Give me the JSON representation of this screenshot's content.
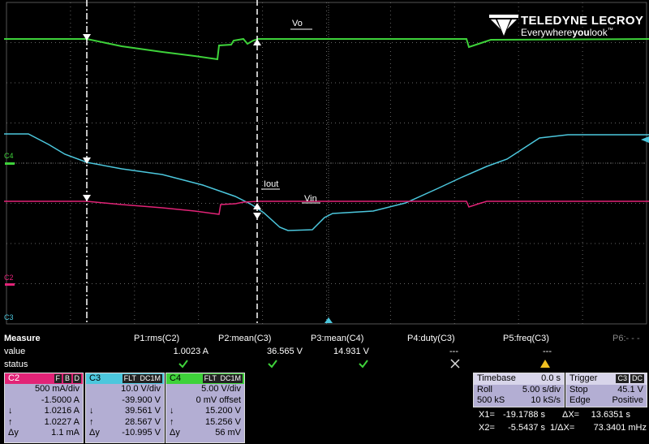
{
  "screen": {
    "logo": {
      "brand": "TELEDYNE LECROY",
      "slogan_a": "Everywhere",
      "slogan_b": "you",
      "slogan_c": "look",
      "tm": "™"
    },
    "trace_labels": {
      "vo": "Vo",
      "iout": "Iout",
      "vin": "Vin"
    },
    "channel_markers": {
      "c4": "C4",
      "c2": "C2",
      "c3": "C3"
    }
  },
  "measure": {
    "title": "Measure",
    "row_value": "value",
    "row_status": "status",
    "params": [
      {
        "name": "P1:rms(C2)",
        "value": "1.0023 A"
      },
      {
        "name": "P2:mean(C3)",
        "value": "36.565 V"
      },
      {
        "name": "P3:mean(C4)",
        "value": "14.931 V"
      },
      {
        "name": "P4:duty(C3)",
        "value": "---"
      },
      {
        "name": "P5:freq(C3)",
        "value": "---"
      },
      {
        "name": "P6:- - -"
      }
    ]
  },
  "channels": [
    {
      "name": "C2",
      "tags": [
        "F",
        "B",
        "D"
      ],
      "scale": "500 mA/div",
      "offset": "-1.5000 A",
      "cursors": [
        {
          "label": "↓",
          "value": "1.0216 A"
        },
        {
          "label": "↑",
          "value": "1.0227 A"
        },
        {
          "label": "Δy",
          "value": "1.1 mA"
        }
      ]
    },
    {
      "name": "C3",
      "tags": [
        "FLT",
        "DC1M"
      ],
      "scale": "10.0 V/div",
      "offset": "-39.900 V",
      "cursors": [
        {
          "label": "↓",
          "value": "39.561 V"
        },
        {
          "label": "↑",
          "value": "28.567 V"
        },
        {
          "label": "Δy",
          "value": "-10.995 V"
        }
      ]
    },
    {
      "name": "C4",
      "tags": [
        "FLT",
        "DC1M"
      ],
      "scale": "5.00 V/div",
      "offset": "0 mV offset",
      "cursors": [
        {
          "label": "↓",
          "value": "15.200 V"
        },
        {
          "label": "↑",
          "value": "15.256 V"
        },
        {
          "label": "Δy",
          "value": "56 mV"
        }
      ]
    }
  ],
  "timebase": {
    "title": "Timebase",
    "delay": "0.0 s",
    "mode": "Roll",
    "scale": "5.00 s/div",
    "samples": "500 kS",
    "rate": "10 kS/s"
  },
  "trigger": {
    "title": "Trigger",
    "source": "C3",
    "coupling": "DC",
    "state": "Stop",
    "level": "45.1 V",
    "type": "Edge",
    "slope": "Positive"
  },
  "cursor_readout": {
    "x1_label": "X1=",
    "x1": "-19.1788 s",
    "dx_label": "ΔX=",
    "dx": "13.6351 s",
    "x2_label": "X2=",
    "x2": "-5.5437 s",
    "inv_label": "1/ΔX=",
    "inv": "73.3401 mHz"
  }
}
